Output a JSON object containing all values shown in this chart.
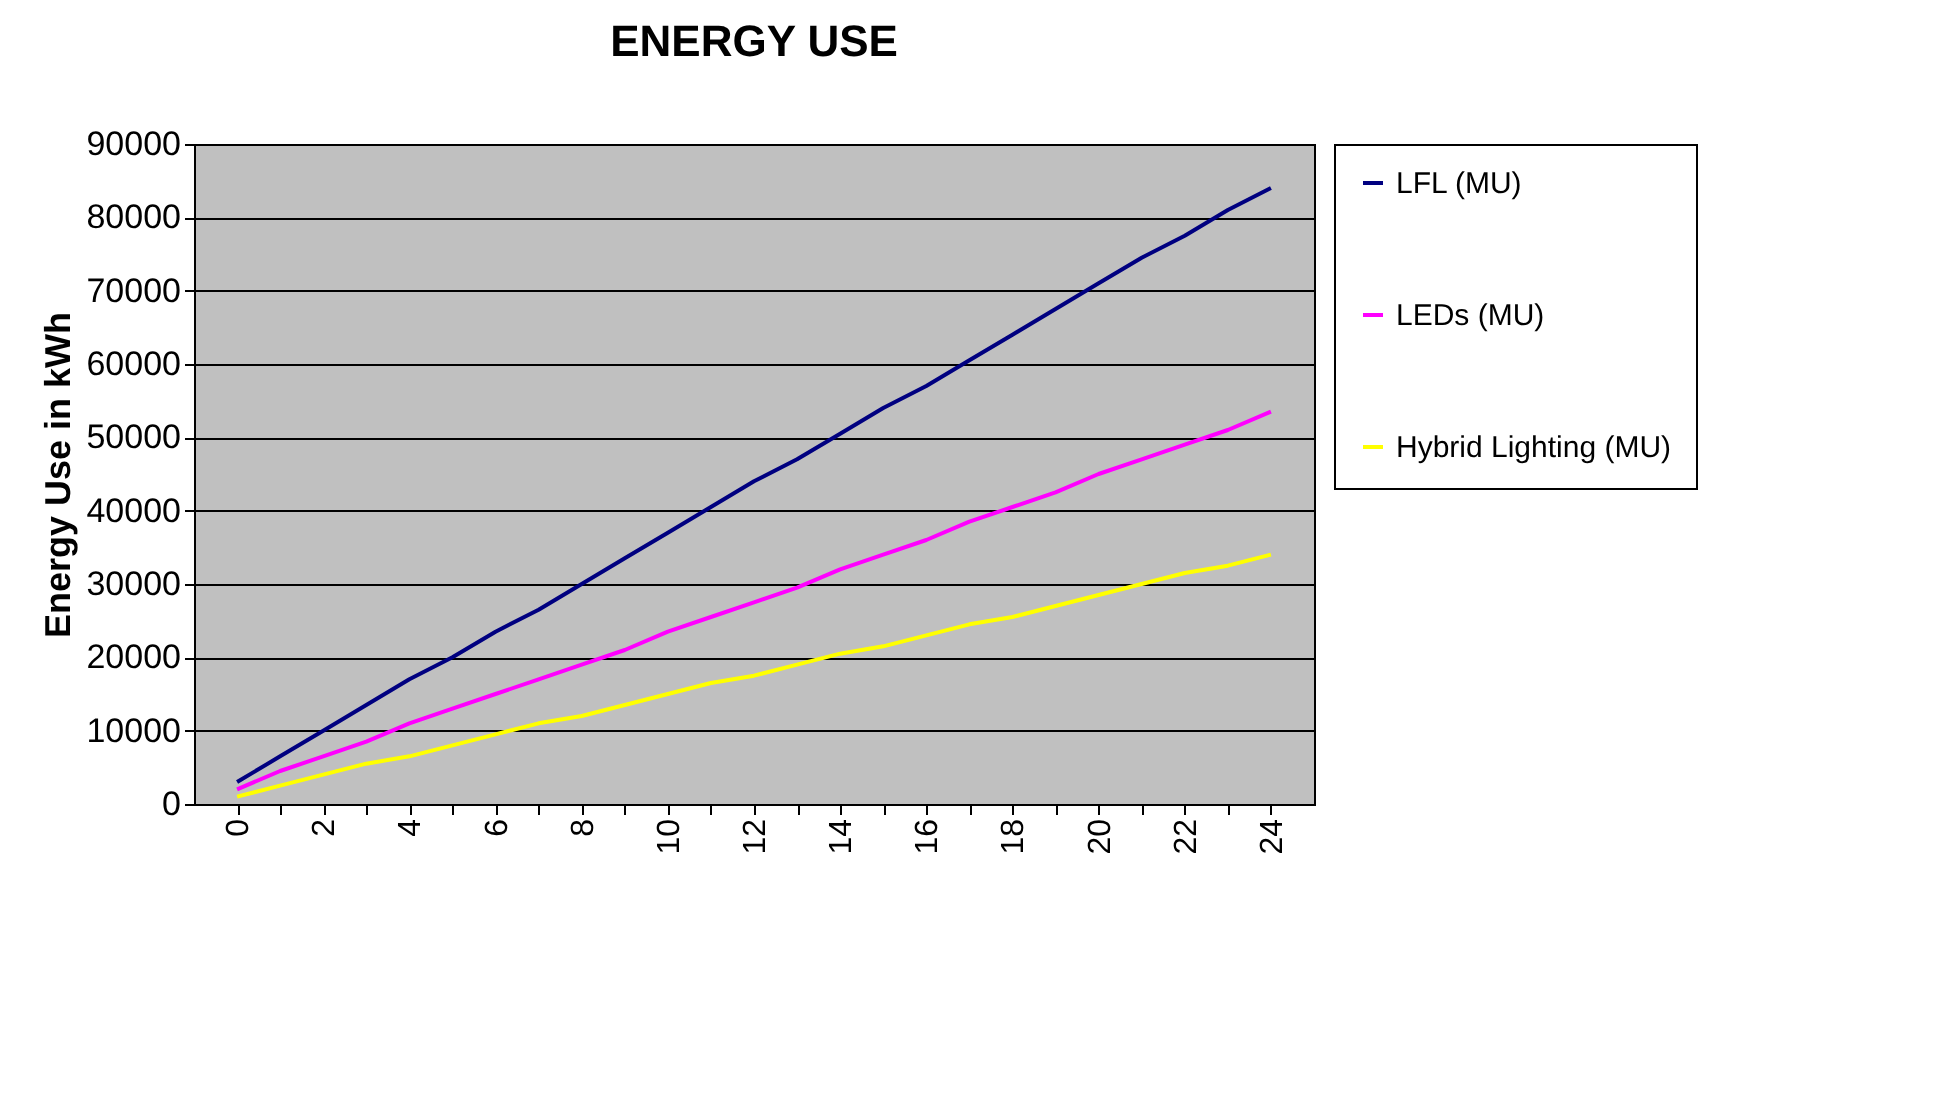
{
  "chart_data": {
    "type": "line",
    "title": "ENERGY USE",
    "ylabel": "Energy Use in kWh",
    "categories": [
      "0",
      null,
      "2",
      null,
      "4",
      null,
      "6",
      null,
      "8",
      null,
      "10",
      null,
      "12",
      null,
      "14",
      null,
      "16",
      null,
      "18",
      null,
      "20",
      null,
      "22",
      null,
      "24"
    ],
    "series": [
      {
        "name": "LFL (MU)",
        "color": "#000080",
        "values": [
          3000,
          6500,
          10000,
          13500,
          17000,
          20000,
          23500,
          26500,
          30000,
          33500,
          37000,
          40500,
          44000,
          47000,
          50500,
          54000,
          57000,
          60500,
          64000,
          67500,
          71000,
          74500,
          77500,
          81000,
          84000
        ]
      },
      {
        "name": "LEDs (MU)",
        "color": "#ff00ff",
        "values": [
          2000,
          4500,
          6500,
          8500,
          11000,
          13000,
          15000,
          17000,
          19000,
          21000,
          23500,
          25500,
          27500,
          29500,
          32000,
          34000,
          36000,
          38500,
          40500,
          42500,
          45000,
          47000,
          49000,
          51000,
          53500
        ]
      },
      {
        "name": "Hybrid Lighting (MU)",
        "color": "#ffff00",
        "values": [
          1000,
          2500,
          4000,
          5500,
          6500,
          8000,
          9500,
          11000,
          12000,
          13500,
          15000,
          16500,
          17500,
          19000,
          20500,
          21500,
          23000,
          24500,
          25500,
          27000,
          28500,
          30000,
          31500,
          32500,
          34000
        ]
      }
    ],
    "ylim": [
      0,
      90000
    ],
    "yticks": [
      0,
      10000,
      20000,
      30000,
      40000,
      50000,
      60000,
      70000,
      80000,
      90000
    ],
    "grid": "y",
    "legend": "right",
    "marker": "none",
    "line_style": "solid"
  }
}
